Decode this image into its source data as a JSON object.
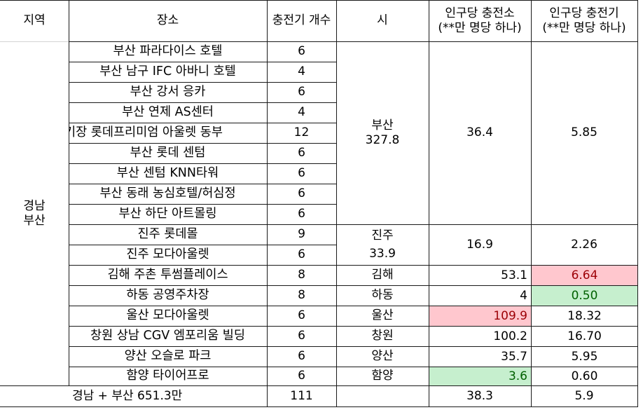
{
  "header": {
    "region": "지역",
    "place": "장소",
    "chargers": "충전기 개수",
    "city": "시",
    "per_station": [
      "인구당 충전소",
      "(**만 명당 하나)"
    ],
    "per_charger": [
      "인구당 충전기",
      "(**만 명당 하나)"
    ]
  },
  "region": [
    "경남",
    "부산"
  ],
  "rows": [
    {
      "place": "부산 파라다이스 호텔",
      "count": "6"
    },
    {
      "place": "부산 남구 IFC 아바니 호텔",
      "count": "4"
    },
    {
      "place": "부산 강서 응카",
      "count": "6"
    },
    {
      "place": "부산 연제 AS센터",
      "count": "4"
    },
    {
      "place": "기장 롯데프리미엄 아울렛 동부",
      "count": "12"
    },
    {
      "place": "부산 롯데 센텀",
      "count": "6"
    },
    {
      "place": "부산 센텀 KNN타워",
      "count": "6"
    },
    {
      "place": "부산 동래 농심호텔/허심정",
      "count": "6"
    },
    {
      "place": "부산 하단 아트몰링",
      "count": "6"
    },
    {
      "place": "진주 롯데몰",
      "count": "9"
    },
    {
      "place": "진주 모다아울렛",
      "count": "6"
    },
    {
      "place": "김해 주촌 투썸플레이스",
      "count": "8"
    },
    {
      "place": "하동 공영주차장",
      "count": "8"
    },
    {
      "place": "울산 모다아울렛",
      "count": "6"
    },
    {
      "place": "창원 상남 CGV 엠포리움 빌딩",
      "count": "6"
    },
    {
      "place": "양산 오슬로 파크",
      "count": "6"
    },
    {
      "place": "함양 타이어프로",
      "count": "6"
    }
  ],
  "cities": [
    {
      "name": "부산",
      "pop": "327.8",
      "per_station": "36.4",
      "per_charger": "5.85"
    },
    {
      "name": "진주",
      "pop": "33.9",
      "per_station": "16.9",
      "per_charger": "2.26"
    },
    {
      "name": "김해",
      "per_station": "53.1",
      "per_charger": "6.64"
    },
    {
      "name": "하동",
      "per_station": "4",
      "per_charger": "0.50"
    },
    {
      "name": "울산",
      "per_station": "109.9",
      "per_charger": "18.32"
    },
    {
      "name": "창원",
      "per_station": "100.2",
      "per_charger": "16.70"
    },
    {
      "name": "양산",
      "per_station": "35.7",
      "per_charger": "5.95"
    },
    {
      "name": "함양",
      "per_station": "3.6",
      "per_charger": "0.60"
    }
  ],
  "total": {
    "label": "경남 + 부산 651.3만",
    "count": "111",
    "per_station": "38.3",
    "per_charger": "5.9"
  },
  "colors": {
    "red_fill": "#ffc7ce",
    "red_text": "#9c0006",
    "green_fill": "#c6efce",
    "green_text": "#006100"
  }
}
